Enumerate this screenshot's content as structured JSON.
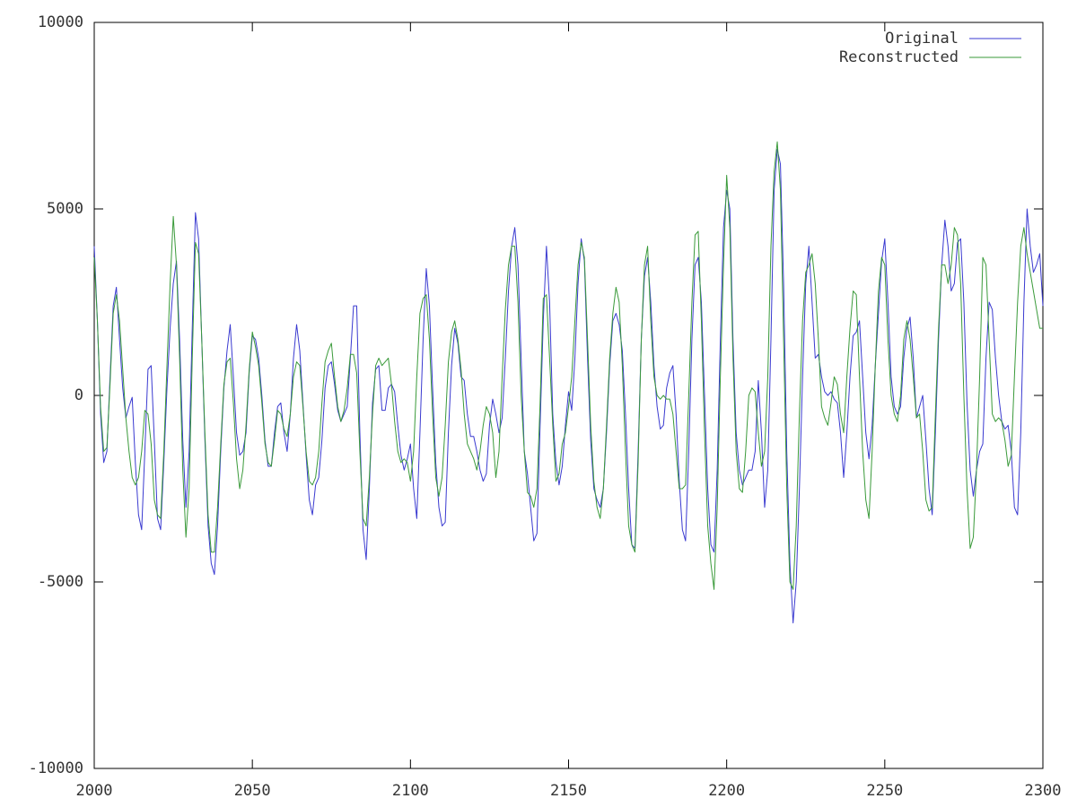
{
  "chart_data": {
    "type": "line",
    "x": [
      2000,
      2001,
      2002,
      2003,
      2004,
      2005,
      2006,
      2007,
      2008,
      2009,
      2010,
      2011,
      2012,
      2013,
      2014,
      2015,
      2016,
      2017,
      2018,
      2019,
      2020,
      2021,
      2022,
      2023,
      2024,
      2025,
      2026,
      2027,
      2028,
      2029,
      2030,
      2031,
      2032,
      2033,
      2034,
      2035,
      2036,
      2037,
      2038,
      2039,
      2040,
      2041,
      2042,
      2043,
      2044,
      2045,
      2046,
      2047,
      2048,
      2049,
      2050,
      2051,
      2052,
      2053,
      2054,
      2055,
      2056,
      2057,
      2058,
      2059,
      2060,
      2061,
      2062,
      2063,
      2064,
      2065,
      2066,
      2067,
      2068,
      2069,
      2070,
      2071,
      2072,
      2073,
      2074,
      2075,
      2076,
      2077,
      2078,
      2079,
      2080,
      2081,
      2082,
      2083,
      2084,
      2085,
      2086,
      2087,
      2088,
      2089,
      2090,
      2091,
      2092,
      2093,
      2094,
      2095,
      2096,
      2097,
      2098,
      2099,
      2100,
      2101,
      2102,
      2103,
      2104,
      2105,
      2106,
      2107,
      2108,
      2109,
      2110,
      2111,
      2112,
      2113,
      2114,
      2115,
      2116,
      2117,
      2118,
      2119,
      2120,
      2121,
      2122,
      2123,
      2124,
      2125,
      2126,
      2127,
      2128,
      2129,
      2130,
      2131,
      2132,
      2133,
      2134,
      2135,
      2136,
      2137,
      2138,
      2139,
      2140,
      2141,
      2142,
      2143,
      2144,
      2145,
      2146,
      2147,
      2148,
      2149,
      2150,
      2151,
      2152,
      2153,
      2154,
      2155,
      2156,
      2157,
      2158,
      2159,
      2160,
      2161,
      2162,
      2163,
      2164,
      2165,
      2166,
      2167,
      2168,
      2169,
      2170,
      2171,
      2172,
      2173,
      2174,
      2175,
      2176,
      2177,
      2178,
      2179,
      2180,
      2181,
      2182,
      2183,
      2184,
      2185,
      2186,
      2187,
      2188,
      2189,
      2190,
      2191,
      2192,
      2193,
      2194,
      2195,
      2196,
      2197,
      2198,
      2199,
      2200,
      2201,
      2202,
      2203,
      2204,
      2205,
      2206,
      2207,
      2208,
      2209,
      2210,
      2211,
      2212,
      2213,
      2214,
      2215,
      2216,
      2217,
      2218,
      2219,
      2220,
      2221,
      2222,
      2223,
      2224,
      2225,
      2226,
      2227,
      2228,
      2229,
      2230,
      2231,
      2232,
      2233,
      2234,
      2235,
      2236,
      2237,
      2238,
      2239,
      2240,
      2241,
      2242,
      2243,
      2244,
      2245,
      2246,
      2247,
      2248,
      2249,
      2250,
      2251,
      2252,
      2253,
      2254,
      2255,
      2256,
      2257,
      2258,
      2259,
      2260,
      2261,
      2262,
      2263,
      2264,
      2265,
      2266,
      2267,
      2268,
      2269,
      2270,
      2271,
      2272,
      2273,
      2274,
      2275,
      2276,
      2277,
      2278,
      2279,
      2280,
      2281,
      2282,
      2283,
      2284,
      2285,
      2286,
      2287,
      2288,
      2289,
      2290,
      2291,
      2292,
      2293,
      2294,
      2295,
      2296,
      2297,
      2298,
      2299,
      2300
    ],
    "series": [
      {
        "name": "Original",
        "color": "#3a3ad0",
        "values": [
          4000,
          2000,
          -500,
          -1800,
          -1500,
          500,
          2400,
          2900,
          1500,
          200,
          -600,
          -300,
          -50,
          -1800,
          -3200,
          -3600,
          -1500,
          700,
          800,
          -1200,
          -3300,
          -3600,
          -1800,
          200,
          1800,
          3000,
          3600,
          1500,
          -1200,
          -3000,
          -1500,
          1800,
          4900,
          4200,
          1500,
          -1200,
          -3500,
          -4500,
          -4800,
          -3500,
          -1500,
          200,
          1200,
          1900,
          500,
          -1000,
          -1600,
          -1500,
          -1000,
          600,
          1600,
          1500,
          1000,
          0,
          -1200,
          -1900,
          -1900,
          -1000,
          -300,
          -200,
          -1000,
          -1500,
          -500,
          1000,
          1900,
          1200,
          -200,
          -1600,
          -2800,
          -3200,
          -2400,
          -2200,
          -1200,
          200,
          800,
          900,
          300,
          -400,
          -700,
          -500,
          -300,
          1000,
          2400,
          2400,
          -1000,
          -3600,
          -4400,
          -2500,
          -200,
          700,
          800,
          -400,
          -400,
          200,
          300,
          100,
          -800,
          -1600,
          -2000,
          -1700,
          -1300,
          -2500,
          -3300,
          -1000,
          1500,
          3400,
          2400,
          200,
          -1800,
          -3000,
          -3500,
          -3400,
          -1000,
          800,
          1800,
          1400,
          500,
          400,
          -500,
          -1100,
          -1100,
          -1500,
          -2000,
          -2300,
          -2100,
          -800,
          -100,
          -500,
          -1000,
          -600,
          1000,
          2800,
          4000,
          4500,
          3500,
          1000,
          -1500,
          -2100,
          -3000,
          -3900,
          -3700,
          -800,
          2000,
          4000,
          2500,
          -500,
          -1800,
          -2400,
          -1900,
          -800,
          100,
          -400,
          1000,
          3000,
          4200,
          3600,
          1000,
          -1200,
          -2500,
          -2800,
          -3000,
          -2500,
          -1000,
          800,
          2000,
          2200,
          1900,
          1200,
          -500,
          -2500,
          -4000,
          -4100,
          -1500,
          1500,
          3200,
          3700,
          2500,
          800,
          -300,
          -900,
          -800,
          200,
          600,
          800,
          -500,
          -2300,
          -3600,
          -3900,
          -1500,
          1500,
          3500,
          3700,
          2500,
          0,
          -2500,
          -4000,
          -4200,
          -2000,
          1500,
          4500,
          5500,
          5000,
          1500,
          -1000,
          -2000,
          -2400,
          -2200,
          -2000,
          -2000,
          -1500,
          400,
          -1000,
          -3000,
          -2000,
          1500,
          5500,
          6600,
          6200,
          3000,
          -1500,
          -4500,
          -6100,
          -5000,
          -2500,
          500,
          3000,
          4000,
          2500,
          1000,
          1100,
          500,
          100,
          0,
          100,
          -100,
          -200,
          -1000,
          -2200,
          -1000,
          500,
          1600,
          1700,
          2000,
          500,
          -1000,
          -1700,
          -800,
          800,
          2200,
          3600,
          4200,
          2500,
          500,
          -300,
          -500,
          -300,
          1000,
          1800,
          2100,
          1000,
          -600,
          -300,
          0,
          -1200,
          -2500,
          -3200,
          -1000,
          1500,
          3500,
          4700,
          4000,
          2800,
          3000,
          4100,
          4200,
          2500,
          -200,
          -2000,
          -2700,
          -2000,
          -1500,
          -1300,
          1000,
          2500,
          2300,
          1000,
          0,
          -700,
          -900,
          -800,
          -1500,
          -3000,
          -3200,
          -1000,
          2500,
          5000,
          4000,
          3300,
          3500,
          3800,
          2400
        ]
      },
      {
        "name": "Reconstructed",
        "color": "#3a9a3a",
        "values": [
          3700,
          2000,
          -300,
          -1500,
          -1400,
          300,
          2200,
          2700,
          2000,
          700,
          -600,
          -1500,
          -2200,
          -2400,
          -2200,
          -1500,
          -400,
          -500,
          -1300,
          -2800,
          -3200,
          -3300,
          -1500,
          800,
          3000,
          4800,
          3500,
          1000,
          -2000,
          -3800,
          -2500,
          1000,
          4100,
          3800,
          1500,
          -1000,
          -3200,
          -4200,
          -4200,
          -3000,
          -1300,
          300,
          900,
          1000,
          -200,
          -1700,
          -2500,
          -2000,
          -800,
          700,
          1700,
          1300,
          800,
          -200,
          -1300,
          -1800,
          -1900,
          -1200,
          -400,
          -500,
          -900,
          -1100,
          -500,
          500,
          900,
          800,
          -300,
          -1500,
          -2300,
          -2400,
          -2200,
          -1500,
          -200,
          900,
          1200,
          1400,
          500,
          -300,
          -700,
          -400,
          200,
          1100,
          1100,
          600,
          -1500,
          -3300,
          -3500,
          -2200,
          -500,
          800,
          1000,
          800,
          900,
          1000,
          300,
          -700,
          -1500,
          -1800,
          -1700,
          -1800,
          -2300,
          -1500,
          500,
          2200,
          2600,
          2700,
          1500,
          -500,
          -2200,
          -2700,
          -2200,
          -800,
          900,
          1700,
          2000,
          1500,
          700,
          -500,
          -1300,
          -1500,
          -1700,
          -2000,
          -1500,
          -800,
          -300,
          -500,
          -1000,
          -2200,
          -1500,
          500,
          2300,
          3500,
          4000,
          4000,
          2500,
          0,
          -1500,
          -2600,
          -2700,
          -3000,
          -2500,
          -200,
          2600,
          2700,
          1000,
          -800,
          -2300,
          -2100,
          -1300,
          -1000,
          -300,
          500,
          2000,
          3500,
          4100,
          3700,
          1500,
          -800,
          -2300,
          -3000,
          -3300,
          -2500,
          -800,
          1000,
          2200,
          2900,
          2500,
          800,
          -1500,
          -3500,
          -4000,
          -4200,
          -1800,
          1500,
          3500,
          4000,
          2000,
          500,
          0,
          -100,
          0,
          -100,
          -100,
          -500,
          -1500,
          -2500,
          -2500,
          -2400,
          0,
          2500,
          4300,
          4400,
          2000,
          -1000,
          -3500,
          -4500,
          -5200,
          -3000,
          500,
          3500,
          5900,
          4500,
          1000,
          -1500,
          -2500,
          -2600,
          -1500,
          0,
          200,
          100,
          -1000,
          -1900,
          -1500,
          500,
          4000,
          6000,
          6800,
          5500,
          1500,
          -2500,
          -5000,
          -5200,
          -3500,
          -500,
          2000,
          3300,
          3500,
          3800,
          3000,
          1500,
          -300,
          -600,
          -800,
          -200,
          500,
          300,
          -500,
          -1000,
          500,
          1800,
          2800,
          2700,
          500,
          -1500,
          -2800,
          -3300,
          -1500,
          800,
          2800,
          3700,
          3500,
          1500,
          0,
          -500,
          -700,
          0,
          1500,
          2000,
          1500,
          500,
          -600,
          -500,
          -1500,
          -2800,
          -3100,
          -3000,
          -500,
          1800,
          3500,
          3500,
          3000,
          3500,
          4500,
          4300,
          3000,
          0,
          -2500,
          -4100,
          -3800,
          -2000,
          500,
          3700,
          3500,
          1500,
          -500,
          -700,
          -600,
          -700,
          -1200,
          -1900,
          -1600,
          500,
          2500,
          4000,
          4500,
          3800,
          3300,
          2800,
          2300,
          1800,
          1800
        ]
      }
    ],
    "xlim": [
      2000,
      2300
    ],
    "xticks": [
      2000,
      2050,
      2100,
      2150,
      2200,
      2250,
      2300
    ],
    "ylim": [
      -10000,
      10000
    ],
    "yticks": [
      -10000,
      -5000,
      0,
      5000,
      10000
    ],
    "grid": false,
    "legend": "top-right"
  }
}
